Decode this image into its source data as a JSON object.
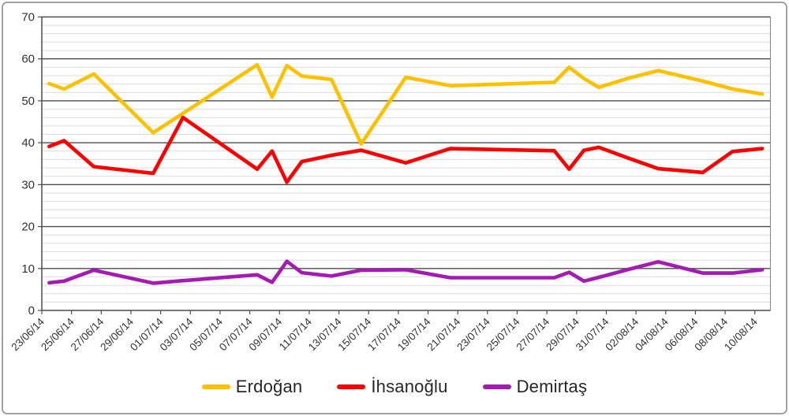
{
  "chart_data": {
    "type": "line",
    "title": "",
    "xlabel": "",
    "ylabel": "",
    "x_dates": [
      "23/06/14",
      "24/06/14",
      "26/06/14",
      "30/06/14",
      "02/07/14",
      "07/07/14",
      "08/07/14",
      "09/07/14",
      "10/07/14",
      "12/07/14",
      "14/07/14",
      "17/07/14",
      "20/07/14",
      "27/07/14",
      "28/07/14",
      "29/07/14",
      "30/07/14",
      "01/08/14",
      "03/08/14",
      "06/08/14",
      "08/08/14",
      "10/08/14"
    ],
    "x_day_offsets": [
      0,
      1,
      3,
      7,
      9,
      14,
      15,
      16,
      17,
      19,
      21,
      24,
      27,
      34,
      35,
      36,
      37,
      39,
      41,
      44,
      46,
      48
    ],
    "series": [
      {
        "name": "Erdoğan",
        "color": "#FFC000",
        "values": [
          54.1,
          52.8,
          56.4,
          42.4,
          47.0,
          58.6,
          50.9,
          58.4,
          55.9,
          55.1,
          39.7,
          55.6,
          53.6,
          54.4,
          58.0,
          55.3,
          53.2,
          55.4,
          57.2,
          54.7,
          52.8,
          51.6
        ]
      },
      {
        "name": "İhsanoğlu",
        "color": "#FE0000",
        "values": [
          39.1,
          40.5,
          34.3,
          32.7,
          46.0,
          33.7,
          38.0,
          30.6,
          35.5,
          37.0,
          38.2,
          35.2,
          38.6,
          38.1,
          33.7,
          38.2,
          38.9,
          36.3,
          33.8,
          32.9,
          37.9,
          38.6
        ]
      },
      {
        "name": "Demirtaş",
        "color": "#A519B4",
        "values": [
          6.6,
          7.0,
          9.6,
          6.5,
          7.1,
          8.5,
          6.7,
          11.7,
          9.0,
          8.2,
          9.6,
          9.7,
          7.8,
          7.8,
          9.1,
          7.0,
          7.9,
          9.8,
          11.6,
          8.9,
          8.9,
          9.7
        ]
      }
    ],
    "x_tick_labels": [
      "23/06/14",
      "25/06/14",
      "27/06/14",
      "29/06/14",
      "01/07/14",
      "03/07/14",
      "05/07/14",
      "07/07/14",
      "09/07/14",
      "11/07/14",
      "13/07/14",
      "15/07/14",
      "17/07/14",
      "19/07/14",
      "21/07/14",
      "23/07/14",
      "25/07/14",
      "27/07/14",
      "29/07/14",
      "31/07/14",
      "02/08/14",
      "04/08/14",
      "06/08/14",
      "08/08/14",
      "10/08/14"
    ],
    "y_axis": {
      "min": 0,
      "max": 70,
      "major_step": 10,
      "minor_step": 2,
      "tick_labels": [
        "0",
        "10",
        "20",
        "30",
        "40",
        "50",
        "60",
        "70"
      ]
    },
    "grid": "major-and-minor",
    "legend_position": "bottom"
  },
  "styles": {
    "background": "#FFFFFF",
    "frame_border": "#A3A3A3",
    "major_grid": "#4D4D4D",
    "minor_grid": "#DBDBDB",
    "plot_right_border": "#8C8C8C",
    "axis_line": "#4D4D4D",
    "axis_text": "#333333",
    "legend_text": "#262626",
    "line_width": 4.6
  }
}
